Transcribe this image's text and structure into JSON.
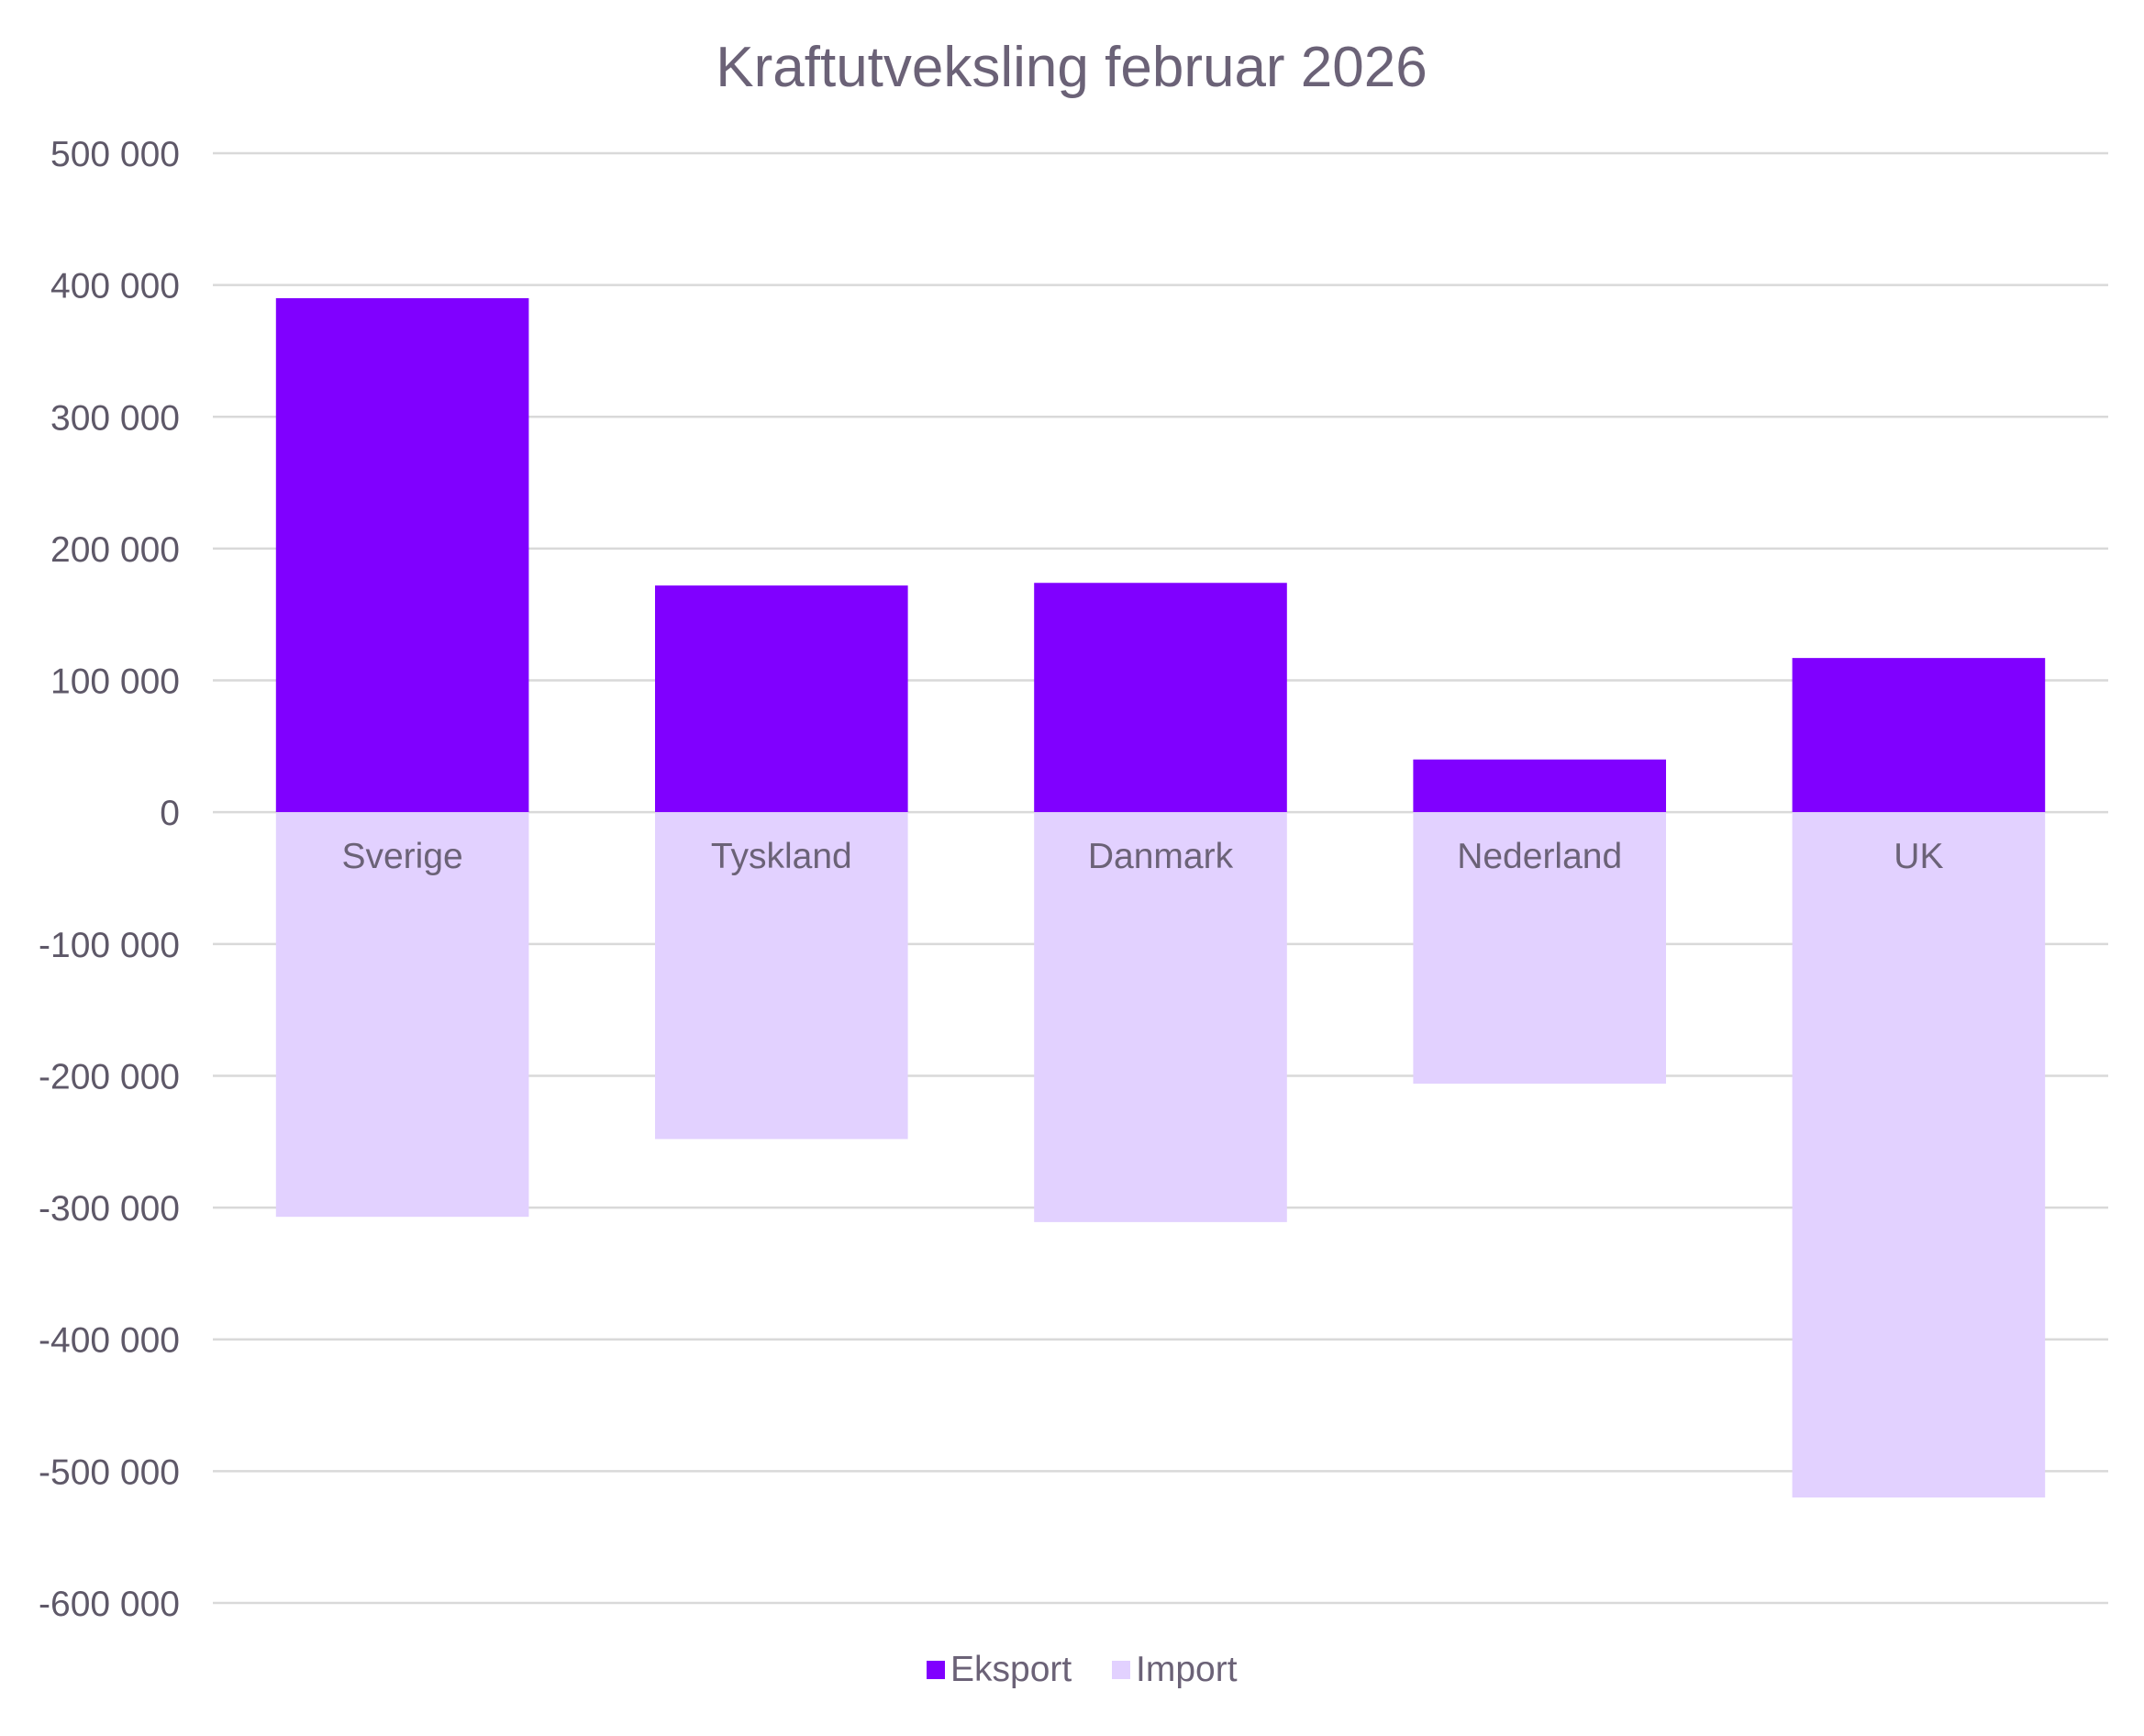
{
  "chart_data": {
    "type": "bar",
    "stacked": true,
    "title": "Kraftutveksling februar 2026",
    "xlabel": "",
    "ylabel": "",
    "categories": [
      "Sverige",
      "Tyskland",
      "Danmark",
      "Nederland",
      "UK"
    ],
    "series": [
      {
        "name": "Eksport",
        "color": "#8000ff",
        "values": [
          390000,
          172000,
          174000,
          40000,
          117000
        ]
      },
      {
        "name": "Import",
        "color": "#e2d1ff",
        "values": [
          -307000,
          -248000,
          -311000,
          -206000,
          -520000
        ]
      }
    ],
    "ylim": [
      -600000,
      500000
    ],
    "yticks": [
      500000,
      400000,
      300000,
      200000,
      100000,
      0,
      -100000,
      -200000,
      -300000,
      -400000,
      -500000,
      -600000
    ],
    "ytick_labels": [
      "500 000",
      "400 000",
      "300 000",
      "200 000",
      "100 000",
      "0",
      "-100 000",
      "-200 000",
      "-300 000",
      "-400 000",
      "-500 000",
      "-600 000"
    ],
    "grid": true,
    "legend": "bottom-center",
    "category_labels_position": "at zero line"
  }
}
